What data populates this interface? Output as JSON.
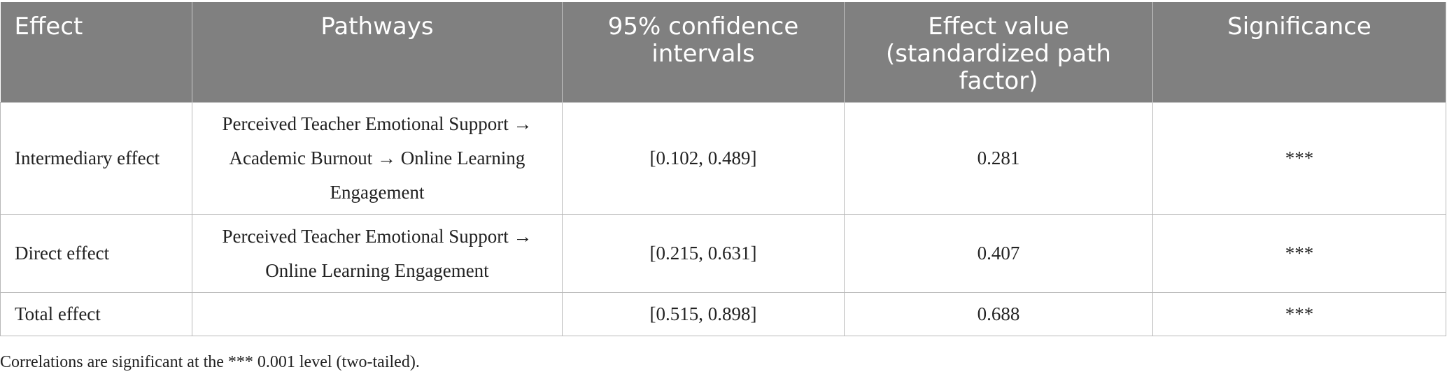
{
  "table": {
    "headers": [
      "Effect",
      "Pathways",
      "95% confidence intervals",
      "Effect value (standardized path factor)",
      "Significance"
    ],
    "rows": [
      {
        "effect": "Intermediary effect",
        "pathway": "Perceived Teacher Emotional Support → Academic Burnout → Online Learning Engagement",
        "ci": "[0.102, 0.489]",
        "value": "0.281",
        "significance": "***"
      },
      {
        "effect": "Direct effect",
        "pathway": "Perceived Teacher Emotional Support → Online Learning Engagement",
        "ci": "[0.215, 0.631]",
        "value": "0.407",
        "significance": "***"
      },
      {
        "effect": "Total effect",
        "pathway": "",
        "ci": "[0.515, 0.898]",
        "value": "0.688",
        "significance": "***"
      }
    ]
  },
  "footnote": "Correlations are significant at the *** 0.001 level (two-tailed)."
}
